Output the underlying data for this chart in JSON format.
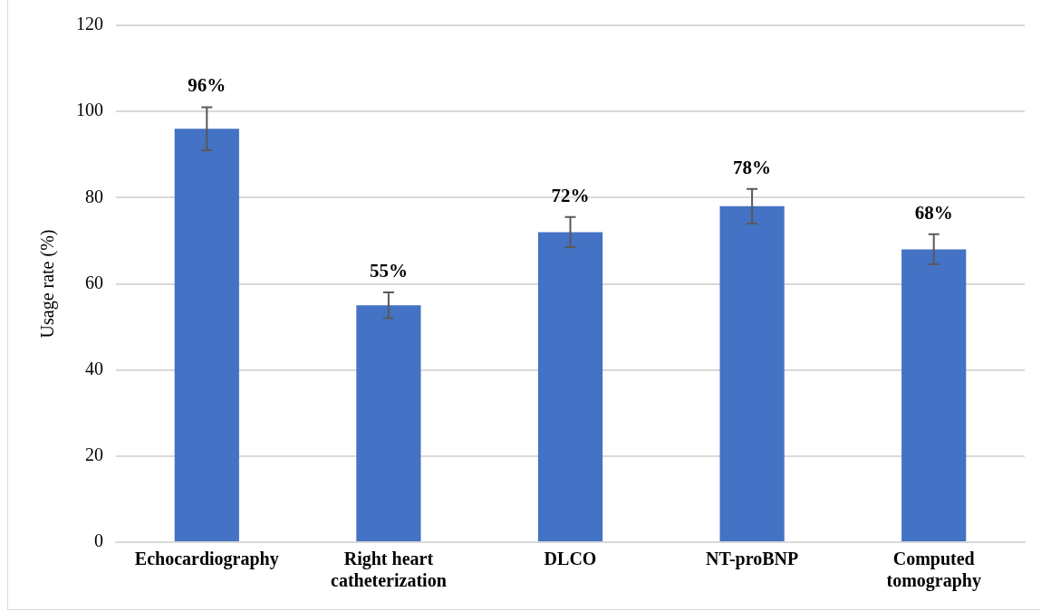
{
  "chart_data": {
    "type": "bar",
    "ylabel": "Usage rate (%)",
    "categories": [
      "Echocardiography",
      "Right heart catheterization",
      "DLCO",
      "NT-proBNP",
      "Computed tomography"
    ],
    "values": [
      96,
      55,
      72,
      78,
      68
    ],
    "errors": [
      5,
      3,
      3.5,
      4,
      3.5
    ],
    "value_labels": [
      "96%",
      "55%",
      "72%",
      "78%",
      "68%"
    ],
    "color": "#4472c4",
    "ylim": [
      0,
      120
    ],
    "yticks": [
      0,
      20,
      40,
      60,
      80,
      100,
      120
    ],
    "grid": "y",
    "legend": false
  }
}
